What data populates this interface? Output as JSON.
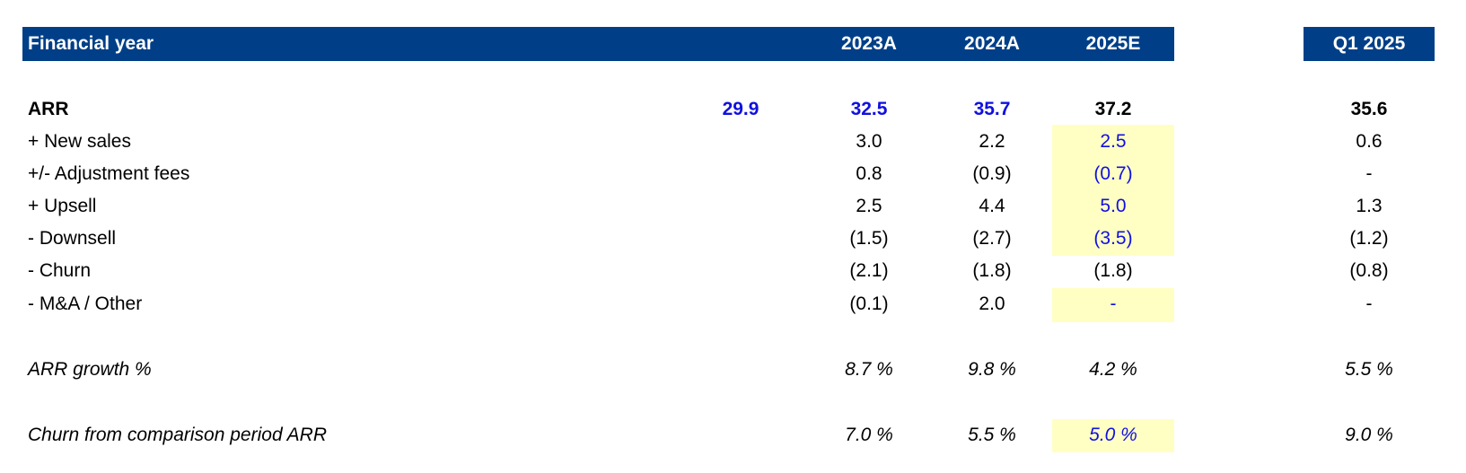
{
  "header": {
    "label": "Financial year",
    "cols": [
      "2023A",
      "2024A",
      "2025E"
    ],
    "q1": "Q1 2025"
  },
  "rows": {
    "arr": {
      "label": "ARR",
      "prior": "29.9",
      "v": [
        "32.5",
        "35.7",
        "37.2"
      ],
      "q1": "35.6"
    },
    "new_sales": {
      "label": "+ New sales",
      "v": [
        "3.0",
        "2.2",
        "2.5"
      ],
      "q1": "0.6"
    },
    "adj_fees": {
      "label": "+/- Adjustment fees",
      "v": [
        "0.8",
        "(0.9)",
        "(0.7)"
      ],
      "q1": "-"
    },
    "upsell": {
      "label": "+ Upsell",
      "v": [
        "2.5",
        "4.4",
        "5.0"
      ],
      "q1": "1.3"
    },
    "downsell": {
      "label": "- Downsell",
      "v": [
        "(1.5)",
        "(2.7)",
        "(3.5)"
      ],
      "q1": "(1.2)"
    },
    "churn": {
      "label": "- Churn",
      "v": [
        "(2.1)",
        "(1.8)",
        "(1.8)"
      ],
      "q1": "(0.8)"
    },
    "ma_other": {
      "label": "- M&A / Other",
      "v": [
        "(0.1)",
        "2.0",
        "-"
      ],
      "q1": "-"
    },
    "arr_growth": {
      "label": "ARR growth %",
      "v": [
        "8.7 %",
        "9.8 %",
        "4.2 %"
      ],
      "q1": "5.5 %"
    },
    "churn_pct": {
      "label": "Churn from comparison period ARR",
      "v": [
        "7.0 %",
        "5.5 %",
        "5.0 %"
      ],
      "q1": "9.0 %"
    }
  },
  "colors": {
    "header_bg": "#003f87",
    "input_blue": "#1010e0",
    "highlight_yellow": "#ffffc4"
  }
}
